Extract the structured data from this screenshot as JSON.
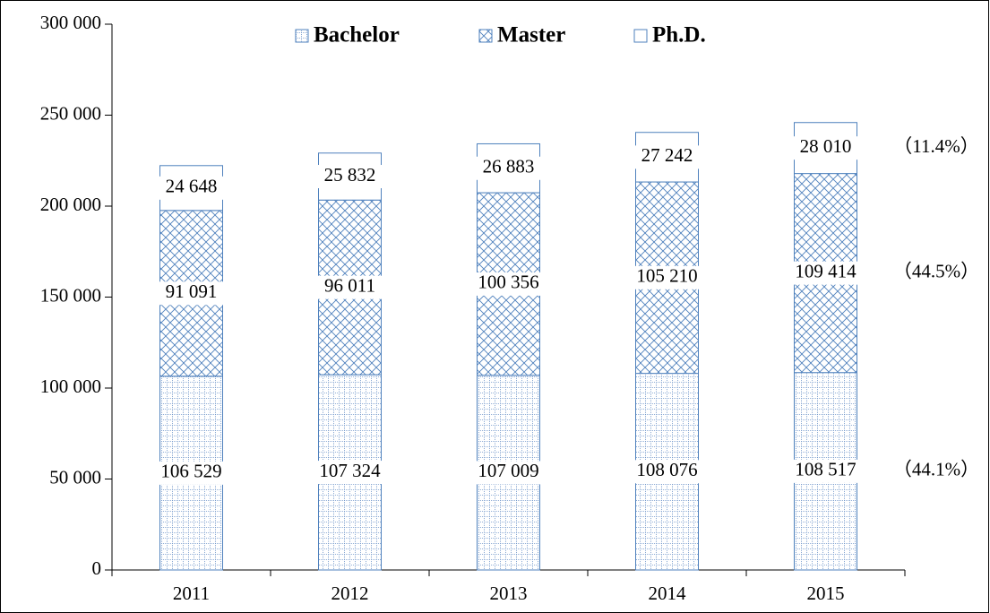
{
  "chart_data": {
    "type": "stacked_bar",
    "categories": [
      "2011",
      "2012",
      "2013",
      "2014",
      "2015"
    ],
    "series": [
      {
        "name": "Bachelor",
        "color": "#4f81bd",
        "pattern": "grid",
        "values": [
          106529,
          107324,
          107009,
          108076,
          108517
        ],
        "value_labels": [
          "106 529",
          "107 324",
          "107 009",
          "108 076",
          "108 517"
        ],
        "share_label": "（44.1%）"
      },
      {
        "name": "Master",
        "color": "#4f81bd",
        "pattern": "crosshatch",
        "values": [
          91091,
          96011,
          100356,
          105210,
          109414
        ],
        "value_labels": [
          "91 091",
          "96 011",
          "100 356",
          "105 210",
          "109 414"
        ],
        "share_label": "（44.5%）"
      },
      {
        "name": "Ph.D.",
        "color": "#4f81bd",
        "pattern": "none",
        "values": [
          24648,
          25832,
          26883,
          27242,
          28010
        ],
        "value_labels": [
          "24 648",
          "25 832",
          "26 883",
          "27 242",
          "28 010"
        ],
        "share_label": "（11.4%）"
      }
    ],
    "ylim": [
      0,
      300000
    ],
    "yticks": [
      0,
      {
        "value": 50000,
        "label": "50 000"
      },
      {
        "value": 100000,
        "label": "100 000"
      },
      {
        "value": 150000,
        "label": "150 000"
      },
      {
        "value": 200000,
        "label": "200 000"
      },
      {
        "value": 250000,
        "label": "250 000"
      },
      {
        "value": 300000,
        "label": "300 000"
      }
    ],
    "grid": false,
    "legend": "top"
  }
}
